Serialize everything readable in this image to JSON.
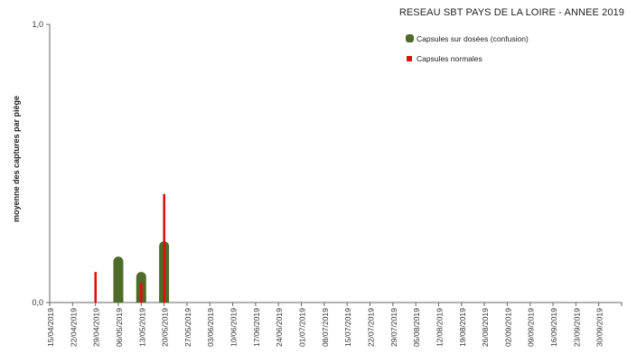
{
  "chart_data": {
    "type": "bar",
    "title": "RESEAU SBT PAYS DE LA LOIRE - ANNEE 2019",
    "ylabel": "moyenne des captures par piège",
    "xlabel": "",
    "ylim": [
      0,
      1
    ],
    "ytick_labels": [
      "0,0",
      "1,0"
    ],
    "categories": [
      "15/04/2019",
      "22/04/2019",
      "29/04/2019",
      "06/05/2019",
      "13/05/2019",
      "20/05/2019",
      "27/05/2019",
      "03/06/2019",
      "10/06/2019",
      "17/06/2019",
      "24/06/2019",
      "01/07/2019",
      "08/07/2019",
      "15/07/2019",
      "22/07/2019",
      "29/07/2019",
      "05/08/2019",
      "12/08/2019",
      "19/08/2019",
      "26/08/2019",
      "02/09/2019",
      "09/09/2019",
      "16/09/2019",
      "23/09/2019",
      "30/09/2019"
    ],
    "series": [
      {
        "name": "Capsules sur dosées (confusion)",
        "color": "#4f6b2a",
        "values": [
          0,
          0,
          0.165,
          0.11,
          0.22,
          0,
          0,
          0,
          0,
          0,
          0,
          0,
          0,
          0,
          0,
          0,
          0,
          0,
          0,
          0,
          0,
          0,
          0,
          0,
          0
        ]
      },
      {
        "name": "Capsules normales",
        "color": "#e01010",
        "values": [
          0,
          0.11,
          0,
          0.07,
          0.39,
          0,
          0,
          0,
          0,
          0,
          0,
          0,
          0,
          0,
          0,
          0,
          0,
          0,
          0,
          0,
          0,
          0,
          0,
          0,
          0
        ]
      }
    ],
    "legend_position": "top-right",
    "grid": false
  }
}
